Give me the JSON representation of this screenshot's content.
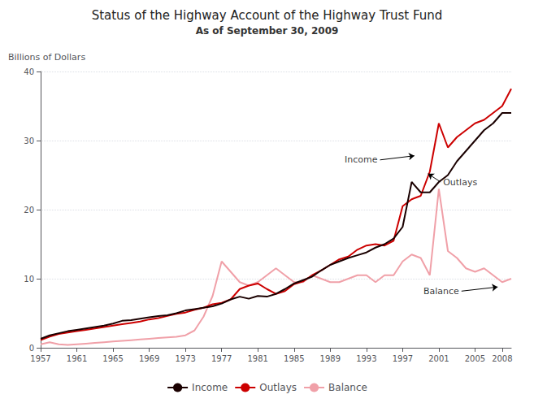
{
  "chart_data": {
    "type": "line",
    "title": "Status of the Highway Account of the Highway Trust Fund",
    "subtitle": "As of September 30, 2009",
    "ylabel": "Billions of Dollars",
    "x": [
      1957,
      1958,
      1959,
      1960,
      1961,
      1962,
      1963,
      1964,
      1965,
      1966,
      1967,
      1968,
      1969,
      1970,
      1971,
      1972,
      1973,
      1974,
      1975,
      1976,
      1977,
      1978,
      1979,
      1980,
      1981,
      1982,
      1983,
      1984,
      1985,
      1986,
      1987,
      1988,
      1989,
      1990,
      1991,
      1992,
      1993,
      1994,
      1995,
      1996,
      1997,
      1998,
      1999,
      2000,
      2001,
      2002,
      2003,
      2004,
      2005,
      2006,
      2007,
      2008,
      2009
    ],
    "series": [
      {
        "name": "Income",
        "color": "#1a0000",
        "values": [
          1.3,
          1.8,
          2.1,
          2.4,
          2.6,
          2.8,
          3.0,
          3.2,
          3.5,
          3.9,
          4.0,
          4.2,
          4.4,
          4.6,
          4.7,
          5.0,
          5.4,
          5.6,
          5.8,
          6.0,
          6.4,
          7.0,
          7.4,
          7.1,
          7.5,
          7.4,
          7.8,
          8.5,
          9.3,
          9.8,
          10.3,
          11.2,
          12.0,
          12.5,
          13.0,
          13.4,
          13.8,
          14.5,
          15.0,
          15.8,
          17.5,
          24.0,
          22.5,
          22.5,
          24.0,
          25.0,
          27.0,
          28.5,
          30.0,
          31.5,
          32.5,
          34.0,
          34.0
        ]
      },
      {
        "name": "Outlays",
        "color": "#cc0000",
        "values": [
          1.1,
          1.6,
          2.0,
          2.2,
          2.4,
          2.6,
          2.8,
          3.0,
          3.2,
          3.4,
          3.6,
          3.8,
          4.1,
          4.3,
          4.6,
          4.9,
          5.1,
          5.5,
          5.8,
          6.3,
          6.5,
          7.0,
          8.5,
          9.0,
          9.3,
          8.5,
          7.8,
          8.2,
          9.2,
          9.6,
          10.5,
          11.2,
          12.0,
          12.8,
          13.2,
          14.2,
          14.8,
          15.0,
          14.8,
          15.5,
          20.5,
          21.5,
          22.0,
          25.5,
          32.5,
          29.0,
          30.5,
          31.5,
          32.5,
          33.0,
          34.0,
          35.0,
          37.5
        ]
      },
      {
        "name": "Balance",
        "color": "#f0a0a8",
        "values": [
          0.5,
          0.8,
          0.5,
          0.4,
          0.5,
          0.6,
          0.7,
          0.8,
          0.9,
          1.0,
          1.1,
          1.2,
          1.3,
          1.4,
          1.5,
          1.6,
          1.8,
          2.5,
          4.5,
          7.5,
          12.5,
          11.0,
          9.5,
          9.0,
          9.5,
          10.5,
          11.5,
          10.5,
          9.5,
          9.5,
          10.5,
          10.0,
          9.5,
          9.5,
          10.0,
          10.5,
          10.5,
          9.5,
          10.5,
          10.5,
          12.5,
          13.5,
          13.0,
          10.5,
          23.0,
          14.0,
          13.0,
          11.5,
          11.0,
          11.5,
          10.5,
          9.5,
          10.0
        ]
      }
    ],
    "xlim": [
      1957,
      2009
    ],
    "xticks": [
      1957,
      1961,
      1965,
      1969,
      1973,
      1977,
      1981,
      1985,
      1989,
      1993,
      1997,
      2001,
      2005,
      2008
    ],
    "ylim": [
      0,
      40
    ],
    "yticks": [
      0,
      10,
      20,
      30,
      40
    ],
    "grid": true,
    "legend": "bottom",
    "annotations": [
      {
        "text": "Income",
        "x": 1998.3,
        "y": 27.8,
        "text_x": 1994.5,
        "text_y": 27.2
      },
      {
        "text": "Outlays",
        "x": 1999.8,
        "y": 25.2,
        "text_x": 2001.2,
        "text_y": 24.0
      },
      {
        "text": "Balance",
        "x": 2007.5,
        "y": 8.8,
        "text_x": 2003.5,
        "text_y": 8.2
      }
    ]
  }
}
